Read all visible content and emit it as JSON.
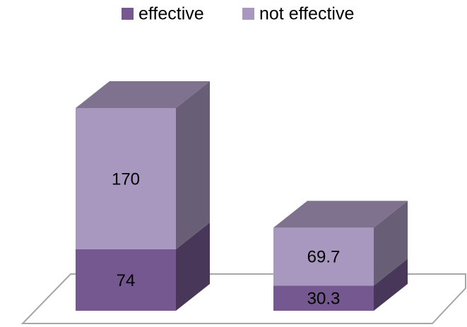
{
  "chart_data": {
    "type": "bar3d-stacked",
    "categories": [
      null,
      null
    ],
    "series": [
      {
        "name": "effective",
        "color": "#765890",
        "values": [
          74,
          30.3
        ]
      },
      {
        "name": "not effective",
        "color": "#a898bf",
        "values": [
          170,
          69.7
        ]
      }
    ]
  }
}
